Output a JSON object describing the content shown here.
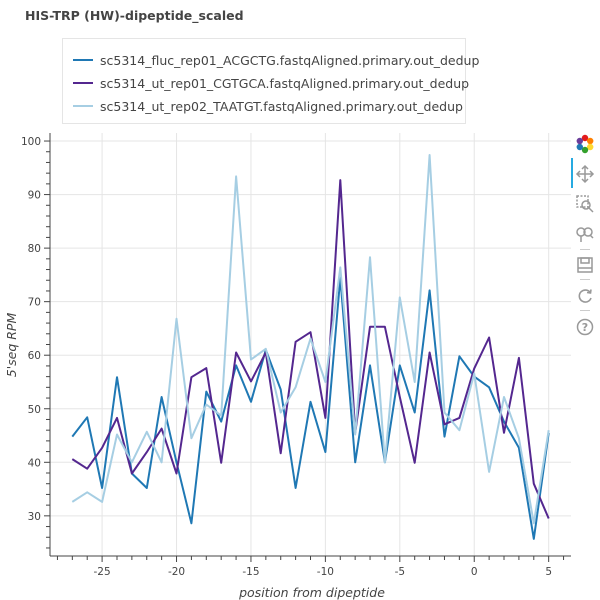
{
  "chart_data": {
    "type": "line",
    "title": "HIS-TRP (HW)-dipeptide_scaled",
    "xlabel": "position from dipeptide",
    "ylabel": "5'seq RPM",
    "xlim": [
      -28.5,
      6.5
    ],
    "ylim": [
      22.5,
      101.5
    ],
    "x_ticks": [
      -25,
      -20,
      -15,
      -10,
      -5,
      0,
      5
    ],
    "y_ticks": [
      30,
      40,
      50,
      60,
      70,
      80,
      90,
      100
    ],
    "grid": true,
    "legend_position": "top-left",
    "x": [
      -27,
      -26,
      -25,
      -24,
      -23,
      -22,
      -21,
      -20,
      -19,
      -18,
      -17,
      -16,
      -15,
      -14,
      -13,
      -12,
      -11,
      -10,
      -9,
      -8,
      -7,
      -6,
      -5,
      -4,
      -3,
      -2,
      -1,
      0,
      1,
      2,
      3,
      4,
      5
    ],
    "series": [
      {
        "name": "sc5314_fluc_rep01_ACGCTG.fastqAligned.primary.out_dedup",
        "color": "#1f78b4",
        "values": [
          44.8,
          48.4,
          35.2,
          55.9,
          37.9,
          35.2,
          52.2,
          40.0,
          28.6,
          53.2,
          47.6,
          58.1,
          51.3,
          61.0,
          53.6,
          35.2,
          51.3,
          41.9,
          74.5,
          40.0,
          58.1,
          40.0,
          58.1,
          49.3,
          72.1,
          44.8,
          59.8,
          56.0,
          54.0,
          47.6,
          42.7,
          25.7,
          45.5
        ]
      },
      {
        "name": "sc5314_ut_rep01_CGTGCA.fastqAligned.primary.out_dedup",
        "color": "#54278f",
        "values": [
          40.6,
          38.8,
          42.7,
          48.3,
          37.9,
          41.9,
          46.3,
          37.9,
          55.9,
          57.6,
          39.9,
          60.5,
          55.1,
          60.5,
          41.7,
          62.5,
          64.3,
          48.3,
          92.7,
          45.5,
          65.3,
          65.3,
          52.2,
          39.9,
          60.5,
          47.1,
          48.3,
          57.5,
          63.3,
          45.5,
          59.5,
          36.0,
          29.5
        ]
      },
      {
        "name": "sc5314_ut_rep02_TAATGT.fastqAligned.primary.out_dedup",
        "color": "#a6cee3",
        "values": [
          32.6,
          34.4,
          32.6,
          45.2,
          40.0,
          45.7,
          40.0,
          66.8,
          44.5,
          50.8,
          48.7,
          93.4,
          59.2,
          61.2,
          49.3,
          54.0,
          63.1,
          55.0,
          76.4,
          45.2,
          78.3,
          40.0,
          70.8,
          55.0,
          97.4,
          49.3,
          46.0,
          56.6,
          38.2,
          52.2,
          44.5,
          28.6,
          46.0
        ]
      }
    ]
  },
  "toolbar": {
    "icons": [
      "bokeh-logo-icon",
      "pan-icon",
      "box-zoom-icon",
      "wheel-zoom-icon",
      "save-icon",
      "reset-icon",
      "help-icon"
    ]
  }
}
